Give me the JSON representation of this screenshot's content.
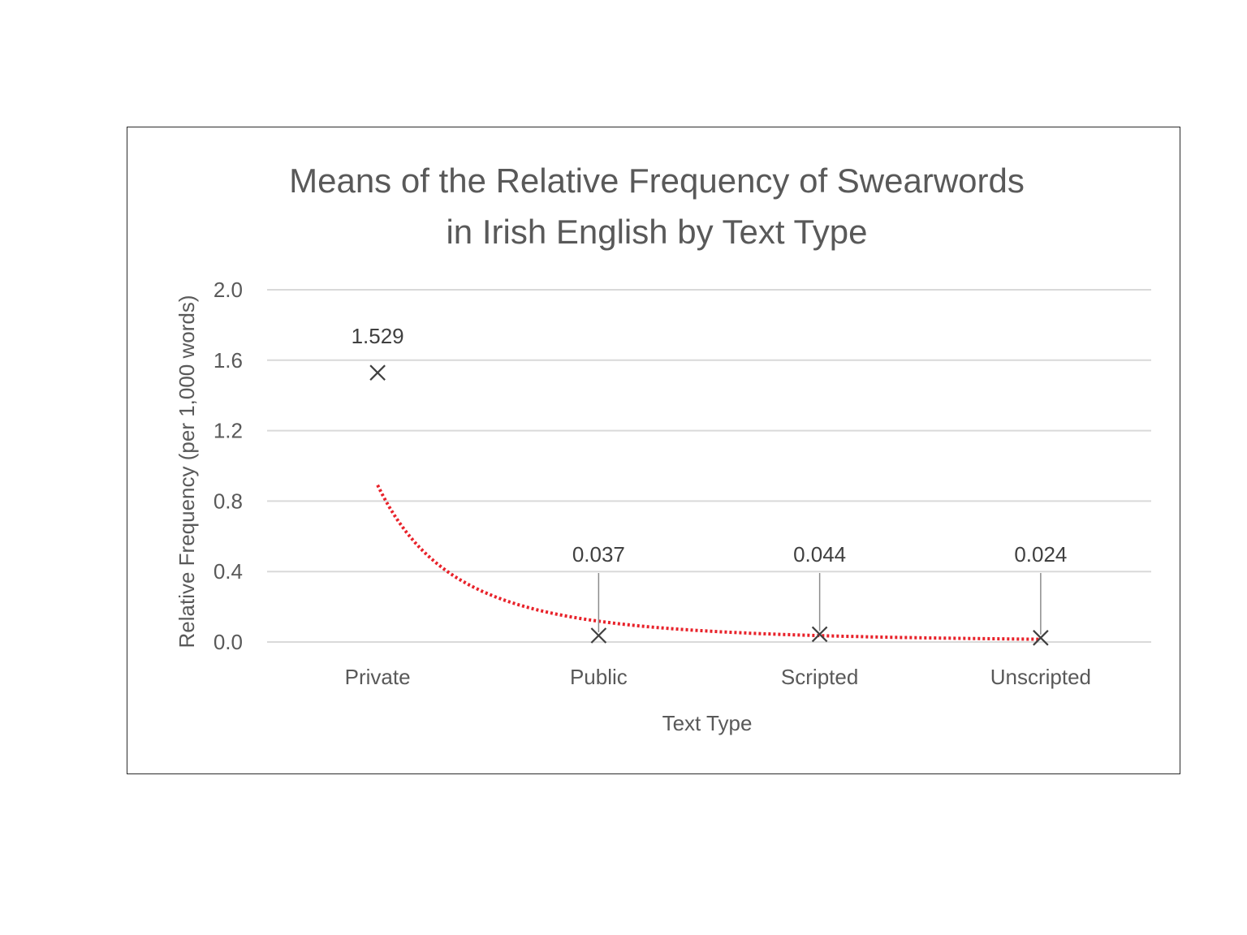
{
  "chart_data": {
    "type": "scatter",
    "title_lines": [
      "Means of the Relative Frequency of Swearwords",
      "in Irish English by Text Type"
    ],
    "xlabel": "Text Type",
    "ylabel": "Relative Frequency (per  1,000 words)",
    "categories": [
      "Private",
      "Public",
      "Scripted",
      "Unscripted"
    ],
    "values": [
      1.529,
      0.037,
      0.044,
      0.024
    ],
    "data_labels": [
      "1.529",
      "0.037",
      "0.044",
      "0.024"
    ],
    "ylim": [
      0.0,
      2.0
    ],
    "yticks": [
      "0.0",
      "0.4",
      "0.8",
      "1.2",
      "1.6",
      "2.0"
    ],
    "ytick_values": [
      0.0,
      0.4,
      0.8,
      1.2,
      1.6,
      2.0
    ],
    "grid": true,
    "marker": "x",
    "trendline": {
      "type": "power",
      "style": "dotted",
      "color": "#e8222a"
    },
    "colors": {
      "marker": "#404040",
      "grid": "#d9d9d9",
      "text": "#595959",
      "trendline": "#e8222a"
    }
  }
}
